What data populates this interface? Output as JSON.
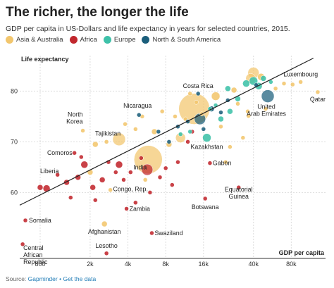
{
  "title": "The richer, the longer the life",
  "subtitle": "GDP per capita in US-Dollars and life expectancy in years for selected countries, 2015.",
  "source": {
    "prefix": "Source:",
    "name": "Gapminder",
    "separator": "•",
    "link": "Get the data"
  },
  "colors": {
    "asia": "#f2c66d",
    "africa": "#c1272d",
    "europe": "#3ec1a9",
    "america": "#1b5e7b",
    "trend": "#222222",
    "grid": "#dddddd"
  },
  "chart_data": {
    "type": "scatter",
    "xscale": "log",
    "xlabel": "GDP per capita",
    "ylabel": "Life expectancy",
    "xlim": [
      550,
      150000
    ],
    "ylim": [
      47,
      87
    ],
    "xticks": [
      {
        "value": 800,
        "label": "800"
      },
      {
        "value": 2000,
        "label": "2k"
      },
      {
        "value": 4000,
        "label": "4k"
      },
      {
        "value": 8000,
        "label": "8k"
      },
      {
        "value": 16000,
        "label": "16k"
      },
      {
        "value": 40000,
        "label": "40k"
      },
      {
        "value": 80000,
        "label": "80k"
      }
    ],
    "yticks": [
      60,
      70,
      80
    ],
    "grid": true,
    "legend_position": "top-left",
    "series": [
      {
        "name": "Asia & Australia",
        "color_key": "asia"
      },
      {
        "name": "Africa",
        "color_key": "africa"
      },
      {
        "name": "Europe",
        "color_key": "europe"
      },
      {
        "name": "North & South America",
        "color_key": "america"
      }
    ],
    "trend": {
      "from": [
        550,
        57.5
      ],
      "to": [
        120000,
        86.5
      ]
    },
    "points": [
      {
        "x": 5800,
        "y": 66.5,
        "r": 20,
        "s": 0,
        "label": "India"
      },
      {
        "x": 13500,
        "y": 76.5,
        "r": 22,
        "s": 0
      },
      {
        "x": 3400,
        "y": 70.5,
        "r": 9,
        "s": 0
      },
      {
        "x": 10500,
        "y": 70.8,
        "r": 7,
        "s": 0
      },
      {
        "x": 40000,
        "y": 83.6,
        "r": 8,
        "s": 0
      },
      {
        "x": 38000,
        "y": 82.5,
        "r": 7,
        "s": 0
      },
      {
        "x": 20000,
        "y": 79.0,
        "r": 6,
        "s": 0
      },
      {
        "x": 46000,
        "y": 82.8,
        "r": 5,
        "s": 0
      },
      {
        "x": 28000,
        "y": 80.2,
        "r": 4,
        "s": 0
      },
      {
        "x": 6500,
        "y": 72.0,
        "r": 4,
        "s": 0
      },
      {
        "x": 8500,
        "y": 69.5,
        "r": 4,
        "s": 0
      },
      {
        "x": 2200,
        "y": 69.5,
        "r": 4,
        "s": 0
      },
      {
        "x": 1750,
        "y": 72.2,
        "r": 3,
        "s": 0,
        "label": "North Korea"
      },
      {
        "x": 2700,
        "y": 70.0,
        "r": 3,
        "s": 0,
        "label": "Tajikistan"
      },
      {
        "x": 2000,
        "y": 64.0,
        "r": 4,
        "s": 0
      },
      {
        "x": 2600,
        "y": 53.8,
        "r": 4,
        "s": 0,
        "label": "Afghanistan"
      },
      {
        "x": 2900,
        "y": 60.5,
        "r": 3,
        "s": 0
      },
      {
        "x": 3800,
        "y": 73.5,
        "r": 3,
        "s": 0
      },
      {
        "x": 4600,
        "y": 72.5,
        "r": 3,
        "s": 0
      },
      {
        "x": 5200,
        "y": 75.0,
        "r": 3,
        "s": 0
      },
      {
        "x": 7500,
        "y": 76.0,
        "r": 3,
        "s": 0
      },
      {
        "x": 9500,
        "y": 75.0,
        "r": 3,
        "s": 0
      },
      {
        "x": 11500,
        "y": 74.5,
        "r": 3,
        "s": 0
      },
      {
        "x": 12500,
        "y": 79.5,
        "r": 3,
        "s": 0
      },
      {
        "x": 15500,
        "y": 75.5,
        "r": 3,
        "s": 0
      },
      {
        "x": 22000,
        "y": 73.0,
        "r": 3,
        "s": 0
      },
      {
        "x": 24000,
        "y": 66.0,
        "r": 3,
        "s": 0
      },
      {
        "x": 26000,
        "y": 69.0,
        "r": 3,
        "s": 0
      },
      {
        "x": 30000,
        "y": 77.5,
        "r": 3,
        "s": 0
      },
      {
        "x": 36000,
        "y": 76.0,
        "r": 3,
        "s": 0
      },
      {
        "x": 50000,
        "y": 76.5,
        "r": 3,
        "s": 0
      },
      {
        "x": 60000,
        "y": 80.5,
        "r": 3,
        "s": 0
      },
      {
        "x": 70000,
        "y": 81.5,
        "r": 3,
        "s": 0
      },
      {
        "x": 82000,
        "y": 81.3,
        "r": 3,
        "s": 0
      },
      {
        "x": 130000,
        "y": 79.8,
        "r": 3,
        "s": 0,
        "label": "Qatar"
      },
      {
        "x": 95000,
        "y": 81.8,
        "r": 3,
        "s": 0,
        "label": "Luxembourg"
      },
      {
        "x": 5500,
        "y": 62.5,
        "r": 3,
        "s": 0
      },
      {
        "x": 14000,
        "y": 77.8,
        "r": 3,
        "s": 0
      },
      {
        "x": 36500,
        "y": 75.1,
        "r": 3,
        "s": 0
      },
      {
        "x": 33000,
        "y": 70.8,
        "r": 3,
        "s": 0
      },
      {
        "x": 5700,
        "y": 64.5,
        "r": 8,
        "s": 1
      },
      {
        "x": 3400,
        "y": 65.5,
        "r": 5,
        "s": 1
      },
      {
        "x": 1800,
        "y": 65.5,
        "r": 5,
        "s": 1
      },
      {
        "x": 900,
        "y": 60.8,
        "r": 5,
        "s": 1
      },
      {
        "x": 1300,
        "y": 62.0,
        "r": 4,
        "s": 1
      },
      {
        "x": 1600,
        "y": 63.0,
        "r": 4,
        "s": 1
      },
      {
        "x": 2100,
        "y": 61.0,
        "r": 4,
        "s": 1
      },
      {
        "x": 2500,
        "y": 62.5,
        "r": 4,
        "s": 1
      },
      {
        "x": 2800,
        "y": 66.0,
        "r": 3,
        "s": 1
      },
      {
        "x": 3200,
        "y": 64.0,
        "r": 3,
        "s": 1
      },
      {
        "x": 3700,
        "y": 62.5,
        "r": 3,
        "s": 1
      },
      {
        "x": 4200,
        "y": 64.0,
        "r": 3,
        "s": 1
      },
      {
        "x": 4600,
        "y": 58.0,
        "r": 3,
        "s": 1
      },
      {
        "x": 6000,
        "y": 60.0,
        "r": 3,
        "s": 1,
        "label": "Congo, Rep."
      },
      {
        "x": 3900,
        "y": 56.8,
        "r": 3,
        "s": 1,
        "label": "Zambia"
      },
      {
        "x": 7200,
        "y": 63.0,
        "r": 3,
        "s": 1
      },
      {
        "x": 8000,
        "y": 64.8,
        "r": 3,
        "s": 1
      },
      {
        "x": 10000,
        "y": 66.0,
        "r": 3,
        "s": 1
      },
      {
        "x": 12000,
        "y": 70.0,
        "r": 3,
        "s": 1
      },
      {
        "x": 13000,
        "y": 72.0,
        "r": 3,
        "s": 1
      },
      {
        "x": 18000,
        "y": 65.8,
        "r": 3,
        "s": 1,
        "label": "Gabon"
      },
      {
        "x": 16500,
        "y": 58.8,
        "r": 3,
        "s": 1,
        "label": "Botswana"
      },
      {
        "x": 30500,
        "y": 61.0,
        "r": 3,
        "s": 1,
        "label": "Equatorial Guinea"
      },
      {
        "x": 6200,
        "y": 52.0,
        "r": 3,
        "s": 1,
        "label": "Swaziland"
      },
      {
        "x": 2700,
        "y": 48.0,
        "r": 3,
        "s": 1,
        "label": "Lesotho"
      },
      {
        "x": 580,
        "y": 49.8,
        "r": 3,
        "s": 1,
        "label": "Central African Republic"
      },
      {
        "x": 610,
        "y": 54.5,
        "r": 3,
        "s": 1,
        "label": "Somalia"
      },
      {
        "x": 800,
        "y": 61.0,
        "r": 4,
        "s": 1,
        "label": "Liberia"
      },
      {
        "x": 1500,
        "y": 67.8,
        "r": 3,
        "s": 1,
        "label": "Comoros"
      },
      {
        "x": 1700,
        "y": 67.0,
        "r": 3,
        "s": 1
      },
      {
        "x": 1400,
        "y": 59.0,
        "r": 3,
        "s": 1
      },
      {
        "x": 2200,
        "y": 58.5,
        "r": 3,
        "s": 1
      },
      {
        "x": 1100,
        "y": 63.5,
        "r": 3,
        "s": 1
      },
      {
        "x": 9000,
        "y": 61.5,
        "r": 3,
        "s": 1
      },
      {
        "x": 5100,
        "y": 66.8,
        "r": 3,
        "s": 1
      },
      {
        "x": 17000,
        "y": 70.8,
        "r": 6,
        "s": 2,
        "label": "Kazakhstan"
      },
      {
        "x": 22000,
        "y": 74.5,
        "r": 4,
        "s": 2
      },
      {
        "x": 26000,
        "y": 76.0,
        "r": 4,
        "s": 2
      },
      {
        "x": 30000,
        "y": 78.5,
        "r": 4,
        "s": 2
      },
      {
        "x": 35000,
        "y": 81.5,
        "r": 5,
        "s": 2
      },
      {
        "x": 40000,
        "y": 82.0,
        "r": 6,
        "s": 2
      },
      {
        "x": 44000,
        "y": 81.0,
        "r": 5,
        "s": 2
      },
      {
        "x": 48000,
        "y": 82.5,
        "r": 4,
        "s": 2
      },
      {
        "x": 25000,
        "y": 80.5,
        "r": 4,
        "s": 2
      },
      {
        "x": 20000,
        "y": 77.2,
        "r": 3,
        "s": 2
      },
      {
        "x": 10500,
        "y": 71.5,
        "r": 3,
        "s": 2
      },
      {
        "x": 12500,
        "y": 72.0,
        "r": 3,
        "s": 2
      },
      {
        "x": 55000,
        "y": 81.8,
        "r": 3,
        "s": 2
      },
      {
        "x": 18000,
        "y": 76.5,
        "r": 3,
        "s": 2
      },
      {
        "x": 52000,
        "y": 79.0,
        "r": 9,
        "s": 3,
        "label": "United Arab Emirates"
      },
      {
        "x": 15000,
        "y": 74.5,
        "r": 8,
        "s": 3
      },
      {
        "x": 14500,
        "y": 79.5,
        "r": 3,
        "s": 3,
        "label": "Costa Rica"
      },
      {
        "x": 4900,
        "y": 75.3,
        "r": 3,
        "s": 3,
        "label": "Nicaragua"
      },
      {
        "x": 18500,
        "y": 76.5,
        "r": 4,
        "s": 3
      },
      {
        "x": 22000,
        "y": 75.8,
        "r": 3,
        "s": 3
      },
      {
        "x": 12000,
        "y": 74.0,
        "r": 3,
        "s": 3
      },
      {
        "x": 10000,
        "y": 73.0,
        "r": 3,
        "s": 3
      },
      {
        "x": 8500,
        "y": 70.0,
        "r": 3,
        "s": 3
      },
      {
        "x": 7000,
        "y": 72.0,
        "r": 3,
        "s": 3
      },
      {
        "x": 16000,
        "y": 72.5,
        "r": 3,
        "s": 3
      },
      {
        "x": 25000,
        "y": 78.2,
        "r": 3,
        "s": 3
      },
      {
        "x": 42000,
        "y": 81.2,
        "r": 3,
        "s": 3
      }
    ]
  }
}
